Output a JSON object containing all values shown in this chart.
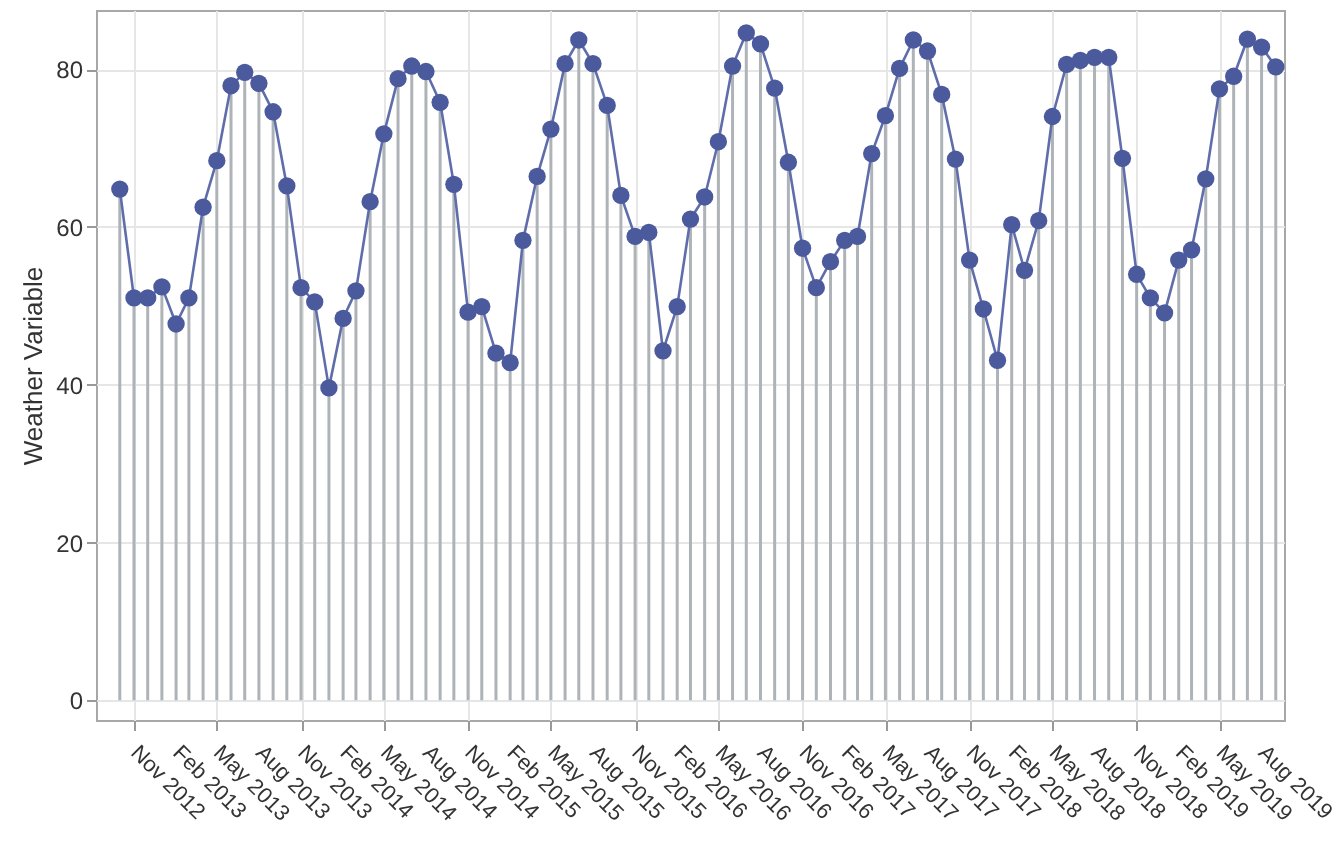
{
  "chart_data": {
    "type": "lollipop",
    "ylabel": "Weather Variable",
    "x": [
      "2012-10",
      "2012-11",
      "2012-12",
      "2013-01",
      "2013-02",
      "2013-03",
      "2013-04",
      "2013-05",
      "2013-06",
      "2013-07",
      "2013-08",
      "2013-09",
      "2013-10",
      "2013-11",
      "2013-12",
      "2014-01",
      "2014-02",
      "2014-03",
      "2014-04",
      "2014-05",
      "2014-06",
      "2014-07",
      "2014-08",
      "2014-09",
      "2014-10",
      "2014-11",
      "2014-12",
      "2015-01",
      "2015-02",
      "2015-03",
      "2015-04",
      "2015-05",
      "2015-06",
      "2015-07",
      "2015-08",
      "2015-09",
      "2015-10",
      "2015-11",
      "2015-12",
      "2016-01",
      "2016-02",
      "2016-03",
      "2016-04",
      "2016-05",
      "2016-06",
      "2016-07",
      "2016-08",
      "2016-09",
      "2016-10",
      "2016-11",
      "2016-12",
      "2017-01",
      "2017-02",
      "2017-03",
      "2017-04",
      "2017-05",
      "2017-06",
      "2017-07",
      "2017-08",
      "2017-09",
      "2017-10",
      "2017-11",
      "2017-12",
      "2018-01",
      "2018-02",
      "2018-03",
      "2018-04",
      "2018-05",
      "2018-06",
      "2018-07",
      "2018-08",
      "2018-09",
      "2018-10",
      "2018-11",
      "2018-12",
      "2019-01",
      "2019-02",
      "2019-03",
      "2019-04",
      "2019-05",
      "2019-06",
      "2019-07",
      "2019-08",
      "2019-09"
    ],
    "series": [
      {
        "color": "#4b5a9c",
        "marker": "circle",
        "values": [
          64.8,
          51.0,
          51.0,
          52.4,
          47.7,
          51.0,
          62.5,
          68.4,
          77.9,
          79.6,
          78.2,
          74.6,
          65.2,
          52.3,
          50.5,
          39.6,
          48.4,
          51.9,
          63.2,
          71.8,
          78.8,
          80.4,
          79.7,
          75.8,
          65.4,
          49.2,
          49.9,
          44.0,
          42.8,
          58.3,
          66.4,
          72.4,
          80.7,
          83.7,
          80.7,
          75.4,
          64.0,
          58.8,
          59.3,
          44.3,
          49.9,
          61.0,
          63.8,
          70.8,
          80.4,
          84.6,
          83.2,
          77.6,
          68.2,
          57.3,
          52.3,
          55.6,
          58.3,
          58.8,
          69.3,
          74.1,
          80.1,
          83.7,
          82.3,
          76.8,
          68.6,
          55.8,
          49.6,
          43.1,
          60.3,
          54.5,
          60.8,
          74.0,
          80.6,
          81.1,
          81.5,
          81.5,
          68.7,
          54.0,
          51.0,
          49.1,
          55.8,
          57.1,
          66.1,
          77.5,
          79.1,
          83.8,
          82.8,
          80.3
        ]
      },
      {
        "type": "line",
        "color": "#5f6dab",
        "line_style": "solid",
        "values": [
          64.8,
          51.0,
          51.0,
          52.4,
          47.7,
          51.0,
          62.5,
          68.4,
          77.9,
          79.6,
          78.2,
          74.6,
          65.2,
          52.3,
          50.5,
          39.6,
          48.4,
          51.9,
          63.2,
          71.8,
          78.8,
          80.4,
          79.7,
          75.8,
          65.4,
          49.2,
          49.9,
          44.0,
          42.8,
          58.3,
          66.4,
          72.4,
          80.7,
          83.7,
          80.7,
          75.4,
          64.0,
          58.8,
          59.3,
          44.3,
          49.9,
          61.0,
          63.8,
          70.8,
          80.4,
          84.6,
          83.2,
          77.6,
          68.2,
          57.3,
          52.3,
          55.6,
          58.3,
          58.8,
          69.3,
          74.1,
          80.1,
          83.7,
          82.3,
          76.8,
          68.6,
          55.8,
          49.6,
          43.1,
          60.3,
          54.5,
          60.8,
          74.0,
          80.6,
          81.1,
          81.5,
          81.5,
          68.7,
          54.0,
          51.0,
          49.1,
          55.8,
          57.1,
          66.1,
          77.5,
          79.1,
          83.8,
          82.8,
          80.3
        ]
      }
    ],
    "grid": true,
    "ylim": [
      -2.5,
      87.5
    ],
    "yticks": [
      0,
      20,
      40,
      60,
      80
    ],
    "xlim": [
      "2012-08-10",
      "2019-09-19"
    ],
    "xticks": [
      {
        "value": "2012-11",
        "label": "Nov 2012"
      },
      {
        "value": "2013-02",
        "label": "Feb 2013"
      },
      {
        "value": "2013-05",
        "label": "May 2013"
      },
      {
        "value": "2013-08",
        "label": "Aug 2013"
      },
      {
        "value": "2013-11",
        "label": "Nov 2013"
      },
      {
        "value": "2014-02",
        "label": "Feb 2014"
      },
      {
        "value": "2014-05",
        "label": "May 2014"
      },
      {
        "value": "2014-08",
        "label": "Aug 2014"
      },
      {
        "value": "2014-11",
        "label": "Nov 2014"
      },
      {
        "value": "2015-02",
        "label": "Feb 2015"
      },
      {
        "value": "2015-05",
        "label": "May 2015"
      },
      {
        "value": "2015-08",
        "label": "Aug 2015"
      },
      {
        "value": "2015-11",
        "label": "Nov 2015"
      },
      {
        "value": "2016-02",
        "label": "Feb 2016"
      },
      {
        "value": "2016-05",
        "label": "May 2016"
      },
      {
        "value": "2016-08",
        "label": "Aug 2016"
      },
      {
        "value": "2016-11",
        "label": "Nov 2016"
      },
      {
        "value": "2017-02",
        "label": "Feb 2017"
      },
      {
        "value": "2017-05",
        "label": "May 2017"
      },
      {
        "value": "2017-08",
        "label": "Aug 2017"
      },
      {
        "value": "2017-11",
        "label": "Nov 2017"
      },
      {
        "value": "2018-02",
        "label": "Feb 2018"
      },
      {
        "value": "2018-05",
        "label": "May 2018"
      },
      {
        "value": "2018-08",
        "label": "Aug 2018"
      },
      {
        "value": "2018-11",
        "label": "Nov 2018"
      },
      {
        "value": "2019-02",
        "label": "Feb 2019"
      },
      {
        "value": "2019-05",
        "label": "May 2019"
      },
      {
        "value": "2019-08",
        "label": "Aug 2019"
      }
    ]
  }
}
